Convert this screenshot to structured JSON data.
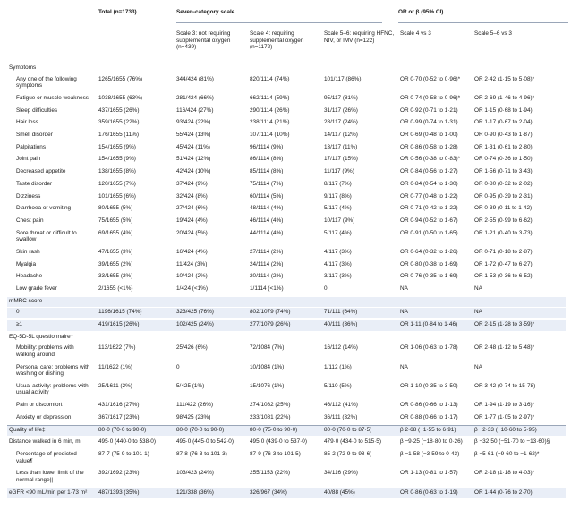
{
  "columns": {
    "total": "Total\n(n=1733)",
    "seven_cat": "Seven-category scale",
    "or_beta": "OR or β (95% CI)",
    "scale3": "Scale 3: not requiring supplemental oxygen (n=439)",
    "scale4": "Scale 4: requiring supplemental oxygen (n=1172)",
    "scale56": "Scale 5–6: requiring HFNC, NIV, or IMV (n=122)",
    "s4vs3": "Scale 4 vs 3",
    "s56vs3": "Scale 5–6 vs 3"
  },
  "rows": [
    {
      "label": "Symptoms",
      "section": true
    },
    {
      "label": "Any one of the following symptoms",
      "v": [
        "1265/1655 (76%)",
        "344/424 (81%)",
        "820/1114 (74%)",
        "101/117 (86%)",
        "OR 0·70 (0·52 to 0·96)*",
        "OR 2·42 (1·15 to 5·08)*"
      ],
      "h": 2
    },
    {
      "label": "Fatigue or muscle weakness",
      "v": [
        "1038/1655 (63%)",
        "281/424 (66%)",
        "662/1114 (59%)",
        "95/117 (81%)",
        "OR 0·74 (0·58 to 0·96)*",
        "OR 2·69 (1·46 to 4·96)*"
      ]
    },
    {
      "label": "Sleep difficulties",
      "v": [
        "437/1655 (26%)",
        "116/424 (27%)",
        "290/1114 (26%)",
        "31/117 (26%)",
        "OR 0·92 (0·71 to 1·21)",
        "OR 1·15 (0·68 to 1·94)"
      ]
    },
    {
      "label": "Hair loss",
      "v": [
        "359/1655 (22%)",
        "93/424 (22%)",
        "238/1114 (21%)",
        "28/117 (24%)",
        "OR 0·99 (0·74 to 1·31)",
        "OR 1·17 (0·67 to 2·04)"
      ]
    },
    {
      "label": "Smell disorder",
      "v": [
        "176/1655 (11%)",
        "55/424 (13%)",
        "107/1114 (10%)",
        "14/117 (12%)",
        "OR 0·69 (0·48 to 1·00)",
        "OR 0·90 (0·43 to 1·87)"
      ]
    },
    {
      "label": "Palpitations",
      "v": [
        "154/1655 (9%)",
        "45/424 (11%)",
        "96/1114 (9%)",
        "13/117 (11%)",
        "OR 0·86 (0·58 to 1·28)",
        "OR 1·31 (0·61 to 2·80)"
      ]
    },
    {
      "label": "Joint pain",
      "v": [
        "154/1655 (9%)",
        "51/424 (12%)",
        "86/1114 (8%)",
        "17/117 (15%)",
        "OR 0·56 (0·38 to 0·83)*",
        "OR 0·74 (0·36 to 1·50)"
      ]
    },
    {
      "label": "Decreased appetite",
      "v": [
        "138/1655 (8%)",
        "42/424 (10%)",
        "85/1114 (8%)",
        "11/117 (9%)",
        "OR 0·84 (0·56 to 1·27)",
        "OR 1·56 (0·71 to 3·43)"
      ]
    },
    {
      "label": "Taste disorder",
      "v": [
        "120/1655 (7%)",
        "37/424 (9%)",
        "75/1114 (7%)",
        "8/117 (7%)",
        "OR 0·84 (0·54 to 1·30)",
        "OR 0·80 (0·32 to 2·02)"
      ]
    },
    {
      "label": "Dizziness",
      "v": [
        "101/1655 (6%)",
        "32/424 (8%)",
        "60/1114 (5%)",
        "9/117 (8%)",
        "OR 0·77 (0·48 to 1·22)",
        "OR 0·95 (0·39 to 2·31)"
      ]
    },
    {
      "label": "Diarrhoea or vomiting",
      "v": [
        "80/1655 (5%)",
        "27/424 (6%)",
        "48/1114 (4%)",
        "5/117 (4%)",
        "OR 0·71 (0·42 to 1·22)",
        "OR 0·39 (0·11 to 1·42)"
      ]
    },
    {
      "label": "Chest pain",
      "v": [
        "75/1655 (5%)",
        "19/424 (4%)",
        "46/1114 (4%)",
        "10/117 (9%)",
        "OR 0·94 (0·52 to 1·67)",
        "OR 2·55 (0·99 to 6·62)"
      ]
    },
    {
      "label": "Sore throat or difficult to swallow",
      "v": [
        "69/1655 (4%)",
        "20/424 (5%)",
        "44/1114 (4%)",
        "5/117 (4%)",
        "OR 0·91 (0·50 to 1·65)",
        "OR 1·21 (0·40 to 3·73)"
      ],
      "h": 2
    },
    {
      "label": "Skin rash",
      "v": [
        "47/1655 (3%)",
        "16/424 (4%)",
        "27/1114 (2%)",
        "4/117 (3%)",
        "OR 0·64 (0·32 to 1·26)",
        "OR 0·71 (0·18 to 2·87)"
      ]
    },
    {
      "label": "Myalgia",
      "v": [
        "39/1655 (2%)",
        "11/424 (3%)",
        "24/1114 (2%)",
        "4/117 (3%)",
        "OR 0·80 (0·38 to 1·69)",
        "OR 1·72 (0·47 to 6·27)"
      ]
    },
    {
      "label": "Headache",
      "v": [
        "33/1655 (2%)",
        "10/424 (2%)",
        "20/1114 (2%)",
        "3/117 (3%)",
        "OR 0·76 (0·35 to 1·69)",
        "OR 1·53 (0·36 to 6·52)"
      ]
    },
    {
      "label": "Low grade fever",
      "v": [
        "2/1655 (<1%)",
        "1/424 (<1%)",
        "1/1114 (<1%)",
        "0",
        "NA",
        "NA"
      ]
    },
    {
      "label": "mMRC score",
      "section": true,
      "band": true
    },
    {
      "label": "0",
      "v": [
        "1196/1615 (74%)",
        "323/425 (76%)",
        "802/1079 (74%)",
        "71/111 (64%)",
        "NA",
        "NA"
      ],
      "band": true
    },
    {
      "label": "≥1",
      "v": [
        "419/1615 (26%)",
        "102/425 (24%)",
        "277/1079 (26%)",
        "40/111 (36%)",
        "OR 1·11 (0·84 to 1·46)",
        "OR 2·15 (1·28 to 3·59)*"
      ],
      "band": true
    },
    {
      "label": "EQ-5D-5L questionnaire†",
      "section": true
    },
    {
      "label": "Mobility: problems with walking around",
      "v": [
        "113/1622 (7%)",
        "25/426 (6%)",
        "72/1084 (7%)",
        "16/112 (14%)",
        "OR 1·06 (0·63 to 1·78)",
        "OR 2·48 (1·12 to 5·48)*"
      ],
      "h": 2
    },
    {
      "label": "Personal care: problems with washing or dishing",
      "v": [
        "11/1622 (1%)",
        "0",
        "10/1084 (1%)",
        "1/112 (1%)",
        "NA",
        "NA"
      ],
      "h": 2
    },
    {
      "label": "Usual activity: problems with usual activity",
      "v": [
        "25/1611 (2%)",
        "5/425 (1%)",
        "15/1076 (1%)",
        "5/110 (5%)",
        "OR 1·10 (0·35 to 3·50)",
        "OR 3·42 (0·74 to 15·78)"
      ],
      "h": 2
    },
    {
      "label": "Pain or discomfort",
      "v": [
        "431/1616 (27%)",
        "111/422 (26%)",
        "274/1082 (25%)",
        "46/112 (41%)",
        "OR 0·86 (0·66 to 1·13)",
        "OR 1·94 (1·19 to 3·16)*"
      ]
    },
    {
      "label": "Anxiety or depression",
      "v": [
        "367/1617 (23%)",
        "98/425 (23%)",
        "233/1081 (22%)",
        "36/111 (32%)",
        "OR 0·88 (0·66 to 1·17)",
        "OR 1·77 (1·05 to 2·97)*"
      ]
    },
    {
      "label": "Quality of life‡",
      "v": [
        "80·0 (70·0 to 90·0)",
        "80·0 (70·0 to 90·0)",
        "80·0 (75·0 to 90·0)",
        "80·0 (70·0 to 87·5)",
        "β 2·68 (−1·55 to 6·91)",
        "β −2·33 (−10·60 to 5·95)"
      ],
      "band": true,
      "topline": true
    },
    {
      "label": "Distance walked in 6 min, m",
      "v": [
        "495·0 (440·0 to 538·0)",
        "495·0 (445·0 to 542·0)",
        "495·0 (439·0 to 537·0)",
        "479·0 (434·0 to 515·5)",
        "β −9·25 (−18·80 to 0·26)",
        "β −32·50 (−51·70 to −13·60)§"
      ],
      "plain": true
    },
    {
      "label": "Percentage of predicted value¶",
      "v": [
        "87·7 (75·9 to 101·1)",
        "87·8 (76·3 to 101·3)",
        "87·9 (76·3 to 101·5)",
        "85·2 (72·9 to 98·6)",
        "β −1·58 (−3·59 to 0·43)",
        "β −5·61 (−9·60 to −1·62)*"
      ],
      "h": 2
    },
    {
      "label": "Less than lower limit of the normal range||",
      "v": [
        "392/1692 (23%)",
        "103/423 (24%)",
        "255/1153 (22%)",
        "34/116 (29%)",
        "OR 1·13 (0·81 to 1·57)",
        "OR 2·18 (1·18 to 4·03)*"
      ],
      "h": 2
    },
    {
      "label": "eGFR <90 mL/min per 1·73 m²",
      "v": [
        "487/1393 (35%)",
        "121/338 (36%)",
        "326/967 (34%)",
        "40/88 (45%)",
        "OR 0·86 (0·63 to 1·19)",
        "OR 1·44 (0·76 to 2·70)"
      ],
      "band": true,
      "topline": true,
      "plain": true
    }
  ]
}
